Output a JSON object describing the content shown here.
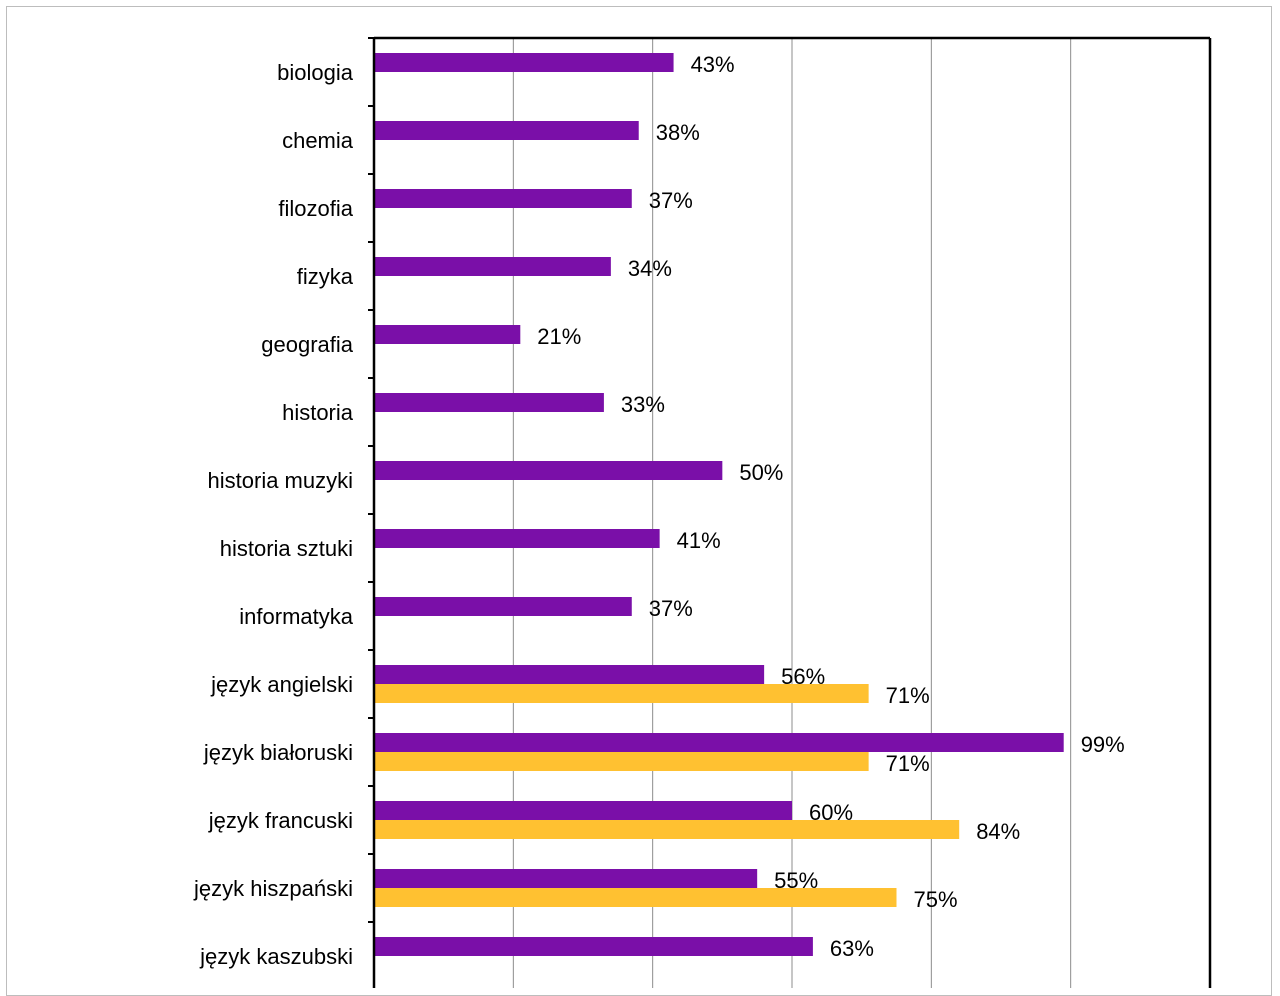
{
  "chart_data": {
    "type": "bar",
    "orientation": "horizontal",
    "xlim": [
      0,
      120
    ],
    "grid": true,
    "categories": [
      "biologia",
      "chemia",
      "filozofia",
      "fizyka",
      "geografia",
      "historia",
      "historia muzyki",
      "historia sztuki",
      "informatyka",
      "język angielski",
      "język białoruski",
      "język francuski",
      "język hiszpański",
      "język kaszubski"
    ],
    "series": [
      {
        "color": "#7a0fa8",
        "values": [
          43,
          38,
          37,
          34,
          21,
          33,
          50,
          41,
          37,
          56,
          99,
          60,
          55,
          63
        ],
        "labels": [
          "43%",
          "38%",
          "37%",
          "34%",
          "21%",
          "33%",
          "50%",
          "41%",
          "37%",
          "56%",
          "99%",
          "60%",
          "55%",
          "63%"
        ]
      },
      {
        "color": "#ffc131",
        "values": [
          null,
          null,
          null,
          null,
          null,
          null,
          null,
          null,
          null,
          71,
          71,
          84,
          75,
          null
        ],
        "labels": [
          null,
          null,
          null,
          null,
          null,
          null,
          null,
          null,
          null,
          "71%",
          "71%",
          "84%",
          "75%",
          null
        ]
      }
    ]
  }
}
